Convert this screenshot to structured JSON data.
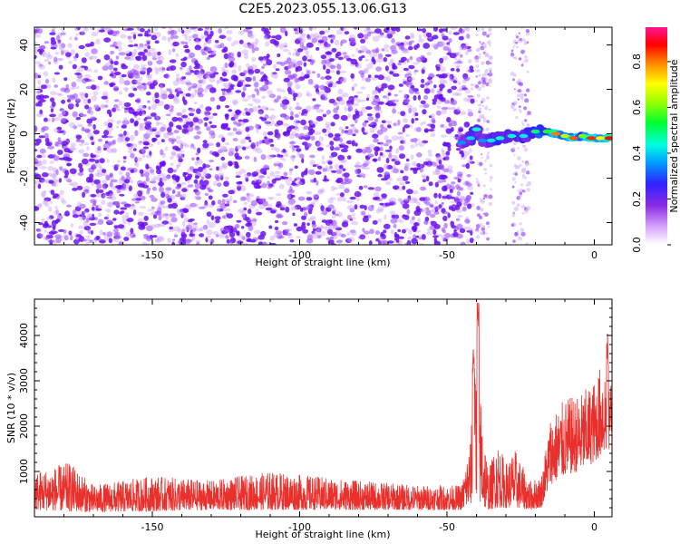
{
  "title": "C2E5.2023.055.13.06.G13",
  "colors": {
    "snr_line": "#e8302c",
    "scatter_base": "#8a2be2",
    "frame": "#000000"
  },
  "chart_data": [
    {
      "type": "heatmap",
      "name": "spectrogram",
      "xlabel": "Height of straight line (km)",
      "ylabel": "Frequency (Hz)",
      "xlim": [
        -190,
        6
      ],
      "ylim": [
        -50,
        48
      ],
      "xticks": [
        {
          "value": -150,
          "label": "-150"
        },
        {
          "value": -100,
          "label": "-100"
        },
        {
          "value": -50,
          "label": "-50"
        },
        {
          "value": 0,
          "label": "0"
        }
      ],
      "yticks": [
        {
          "value": -40,
          "label": "-40"
        },
        {
          "value": -20,
          "label": "-20"
        },
        {
          "value": 0,
          "label": "0"
        },
        {
          "value": 20,
          "label": "20"
        },
        {
          "value": 40,
          "label": "40"
        }
      ],
      "colorbar": {
        "label": "Normalized spectral amplitude",
        "range": [
          0,
          0.95
        ],
        "ticks": [
          {
            "value": 0.0,
            "label": "0.0"
          },
          {
            "value": 0.2,
            "label": "0.2"
          },
          {
            "value": 0.4,
            "label": "0.4"
          },
          {
            "value": 0.6,
            "label": "0.6"
          },
          {
            "value": 0.8,
            "label": "0.8"
          }
        ]
      },
      "noise_region": {
        "x_from": -190,
        "x_to": -45,
        "amplitude_range": [
          0.0,
          0.15
        ]
      },
      "sparse_noise_bands": [
        {
          "x_from": -40,
          "x_to": -35
        },
        {
          "x_from": -28,
          "x_to": -22
        }
      ],
      "signal_track": [
        {
          "x": -45,
          "freq": -4,
          "amp": 0.35
        },
        {
          "x": -42,
          "freq": -2,
          "amp": 0.4
        },
        {
          "x": -40,
          "freq": 2,
          "amp": 0.45
        },
        {
          "x": -38,
          "freq": -3,
          "amp": 0.35
        },
        {
          "x": -35,
          "freq": -3,
          "amp": 0.42
        },
        {
          "x": -32,
          "freq": -2,
          "amp": 0.45
        },
        {
          "x": -28,
          "freq": -1,
          "amp": 0.45
        },
        {
          "x": -24,
          "freq": -1,
          "amp": 0.42
        },
        {
          "x": -20,
          "freq": 1,
          "amp": 0.5
        },
        {
          "x": -16,
          "freq": 1,
          "amp": 0.55
        },
        {
          "x": -13,
          "freq": 0,
          "amp": 0.8
        },
        {
          "x": -10,
          "freq": -1,
          "amp": 0.65
        },
        {
          "x": -7,
          "freq": -2,
          "amp": 0.82
        },
        {
          "x": -4,
          "freq": -1,
          "amp": 0.6
        },
        {
          "x": -1,
          "freq": -2,
          "amp": 0.85
        },
        {
          "x": 2,
          "freq": -2,
          "amp": 0.7
        },
        {
          "x": 5,
          "freq": -2,
          "amp": 0.88
        }
      ]
    },
    {
      "type": "line",
      "name": "snr",
      "xlabel": "Height of straight line (km)",
      "ylabel": "SNR (10 * v/v)",
      "xlim": [
        -190,
        6
      ],
      "ylim": [
        0,
        4800
      ],
      "xticks": [
        {
          "value": -150,
          "label": "-150"
        },
        {
          "value": -100,
          "label": "-100"
        },
        {
          "value": -50,
          "label": "-50"
        },
        {
          "value": 0,
          "label": "0"
        }
      ],
      "yticks": [
        {
          "value": 1000,
          "label": "1000"
        },
        {
          "value": 2000,
          "label": "2000"
        },
        {
          "value": 3000,
          "label": "3000"
        },
        {
          "value": 4000,
          "label": "4000"
        }
      ],
      "envelope": [
        {
          "x": -190,
          "low": 150,
          "high": 1000
        },
        {
          "x": -178,
          "low": 120,
          "high": 1200
        },
        {
          "x": -170,
          "low": 100,
          "high": 700
        },
        {
          "x": -150,
          "low": 120,
          "high": 900
        },
        {
          "x": -130,
          "low": 150,
          "high": 800
        },
        {
          "x": -110,
          "low": 150,
          "high": 1000
        },
        {
          "x": -80,
          "low": 150,
          "high": 800
        },
        {
          "x": -60,
          "low": 150,
          "high": 700
        },
        {
          "x": -45,
          "low": 150,
          "high": 700
        },
        {
          "x": -42,
          "low": 250,
          "high": 1800
        },
        {
          "x": -40,
          "low": 400,
          "high": 3600
        },
        {
          "x": -38,
          "low": 200,
          "high": 2400
        },
        {
          "x": -36,
          "low": 150,
          "high": 1000
        },
        {
          "x": -33,
          "low": 200,
          "high": 1700
        },
        {
          "x": -30,
          "low": 200,
          "high": 1200
        },
        {
          "x": -27,
          "low": 200,
          "high": 1500
        },
        {
          "x": -22,
          "low": 150,
          "high": 800
        },
        {
          "x": -18,
          "low": 200,
          "high": 900
        },
        {
          "x": -15,
          "low": 700,
          "high": 2200
        },
        {
          "x": -10,
          "low": 900,
          "high": 2600
        },
        {
          "x": -5,
          "low": 1000,
          "high": 2700
        },
        {
          "x": 0,
          "low": 1200,
          "high": 3000
        },
        {
          "x": 3,
          "low": 1400,
          "high": 3500
        },
        {
          "x": 6,
          "low": 1500,
          "high": 3000
        }
      ],
      "peaks": [
        {
          "x": -41,
          "value": 3900
        },
        {
          "x": -39.5,
          "value": 4800
        },
        {
          "x": 4.5,
          "value": 4050
        }
      ]
    }
  ]
}
